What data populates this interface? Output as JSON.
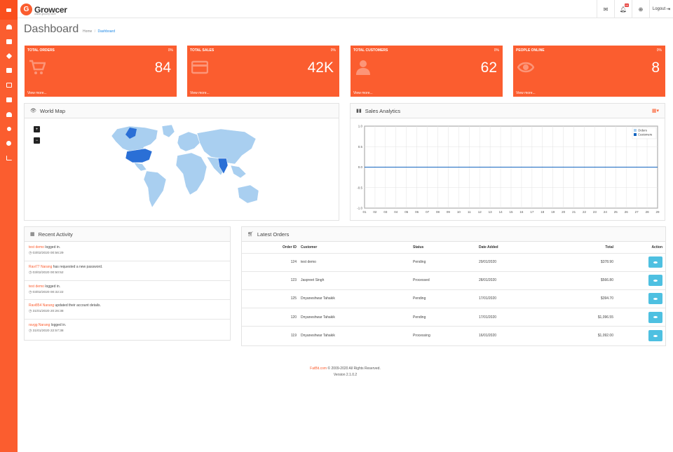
{
  "app": {
    "logo_letter": "G",
    "name": "Growcer",
    "tagline": "online grocery store"
  },
  "sidebar": {
    "items": [
      "toggle-icon",
      "dashboard-icon",
      "mail-icon",
      "tags-icon",
      "shop-icon",
      "monitor-icon",
      "cart-icon",
      "user-icon",
      "share-icon",
      "settings-icon",
      "chart-icon"
    ]
  },
  "topbar": {
    "notifications_badge": "99",
    "logout_label": "Logout"
  },
  "page": {
    "title": "Dashboard",
    "breadcrumb_home": "Home",
    "breadcrumb_sep": "/",
    "breadcrumb_current": "Dashboard"
  },
  "stats": [
    {
      "label": "TOTAL ORDERS",
      "pct": "0%",
      "value": "84",
      "more": "View more...",
      "icon": "cart-icon"
    },
    {
      "label": "TOTAL SALES",
      "pct": "0%",
      "value": "42K",
      "more": "View more...",
      "icon": "credit-card-icon"
    },
    {
      "label": "TOTAL CUSTOMERS",
      "pct": "0%",
      "value": "62",
      "more": "View more...",
      "icon": "user-icon"
    },
    {
      "label": "PEOPLE ONLINE",
      "pct": "0%",
      "value": "8",
      "more": "View more...",
      "icon": "eye-icon"
    }
  ],
  "world_map": {
    "title": "World Map",
    "zoom_in": "+",
    "zoom_out": "−"
  },
  "sales": {
    "title": "Sales Analytics",
    "chart_data": {
      "type": "line",
      "x": [
        "01",
        "02",
        "03",
        "04",
        "05",
        "06",
        "07",
        "08",
        "09",
        "10",
        "11",
        "12",
        "13",
        "14",
        "15",
        "16",
        "17",
        "18",
        "19",
        "20",
        "21",
        "22",
        "23",
        "24",
        "25",
        "26",
        "27",
        "28",
        "29"
      ],
      "series": [
        {
          "name": "Orders",
          "color": "#a9cff0",
          "values": [
            0,
            0,
            0,
            0,
            0,
            0,
            0,
            0,
            0,
            0,
            0,
            0,
            0,
            0,
            0,
            0,
            0,
            0,
            0,
            0,
            0,
            0,
            0,
            0,
            0,
            0,
            0,
            0,
            0
          ]
        },
        {
          "name": "Customers",
          "color": "#1565c0",
          "values": [
            0,
            0,
            0,
            0,
            0,
            0,
            0,
            0,
            0,
            0,
            0,
            0,
            0,
            0,
            0,
            0,
            0,
            0,
            0,
            0,
            0,
            0,
            0,
            0,
            0,
            0,
            0,
            0,
            0
          ]
        }
      ],
      "yticks": [
        "1.0",
        "0.5",
        "0.0",
        "-0.5",
        "-1.0"
      ],
      "ylim": [
        -1,
        1
      ],
      "grid": true,
      "legend": "top-right"
    }
  },
  "activity": {
    "title": "Recent Activity",
    "items": [
      {
        "user": "test demo",
        "text": " logged in.",
        "time": "03/02/2020 00:56:29"
      },
      {
        "user": "Ravi77 Narang",
        "text": " has requested a new password.",
        "time": "03/02/2020 00:50:52"
      },
      {
        "user": "test demo",
        "text": " logged in.",
        "time": "03/02/2020 00:32:22"
      },
      {
        "user": "Ravi854 Narang",
        "text": " updated their account details.",
        "time": "31/01/2020 20:26:38"
      },
      {
        "user": "ravgg Narang",
        "text": " logged in.",
        "time": "31/01/2020 22:57:38"
      }
    ]
  },
  "orders": {
    "title": "Latest Orders",
    "headers": {
      "id": "Order ID",
      "customer": "Customer",
      "status": "Status",
      "date": "Date Added",
      "total": "Total",
      "action": "Action"
    },
    "rows": [
      {
        "id": "124",
        "customer": "test demo",
        "status": "Pending",
        "date": "29/01/2020",
        "total": "$378.90"
      },
      {
        "id": "123",
        "customer": "Jaspreet Singh",
        "status": "Processed",
        "date": "28/01/2020",
        "total": "$566.80"
      },
      {
        "id": "125",
        "customer": "Dnyaneshwar Tahakik",
        "status": "Pending",
        "date": "17/01/2020",
        "total": "$394.70"
      },
      {
        "id": "120",
        "customer": "Dnyaneshwar Tahakik",
        "status": "Pending",
        "date": "17/01/2020",
        "total": "$1,096.55"
      },
      {
        "id": "119",
        "customer": "Dnyaneshwar Tahakik",
        "status": "Processing",
        "date": "16/01/2020",
        "total": "$1,092.00"
      }
    ]
  },
  "footer": {
    "brand": "FatBit.com",
    "copyright": " © 2009-2020 All Rights Reserved.",
    "version": "Version 2.1.0.2"
  },
  "colors": {
    "accent": "#fb5d2f",
    "info": "#4ec0e1"
  }
}
